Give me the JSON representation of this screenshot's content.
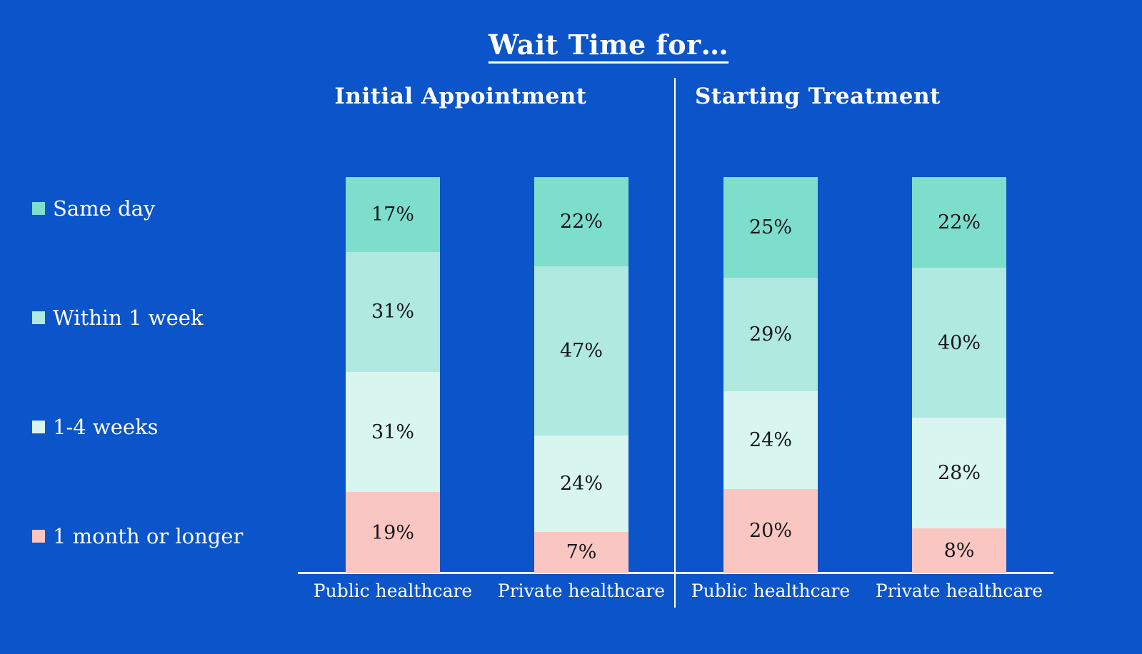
{
  "title": "Wait Time for…",
  "colors": {
    "background": "#0B54C9",
    "axis": "#FFFFFF",
    "label_dark": "#14161A",
    "text_light": "#FFFFFF",
    "segment_colors": [
      "#7DDECB",
      "#AFE9E0",
      "#D8F5F0",
      "#FAC6C2"
    ]
  },
  "legend": {
    "items": [
      {
        "label": "Same day",
        "color": "#7DDECB"
      },
      {
        "label": "Within 1 week",
        "color": "#AFE9E0"
      },
      {
        "label": "1-4 weeks",
        "color": "#D8F5F0"
      },
      {
        "label": "1 month or longer",
        "color": "#FAC6C2"
      }
    ]
  },
  "chart_data": {
    "type": "bar",
    "stacked": true,
    "normalized": true,
    "title": "Wait Time for…",
    "value_format": "percent",
    "series_labels": [
      "Same day",
      "Within 1 week",
      "1-4 weeks",
      "1 month or longer"
    ],
    "groups": [
      {
        "label": "Initial Appointment",
        "bars": [
          {
            "category": "Public healthcare",
            "values": [
              17,
              31,
              31,
              19
            ]
          },
          {
            "category": "Private healthcare",
            "values": [
              22,
              47,
              24,
              7
            ]
          }
        ]
      },
      {
        "label": "Starting Treatment",
        "bars": [
          {
            "category": "Public healthcare",
            "values": [
              25,
              29,
              24,
              20
            ]
          },
          {
            "category": "Private healthcare",
            "values": [
              22,
              40,
              28,
              8
            ]
          }
        ]
      }
    ],
    "legend_position": "left",
    "grid": false
  }
}
